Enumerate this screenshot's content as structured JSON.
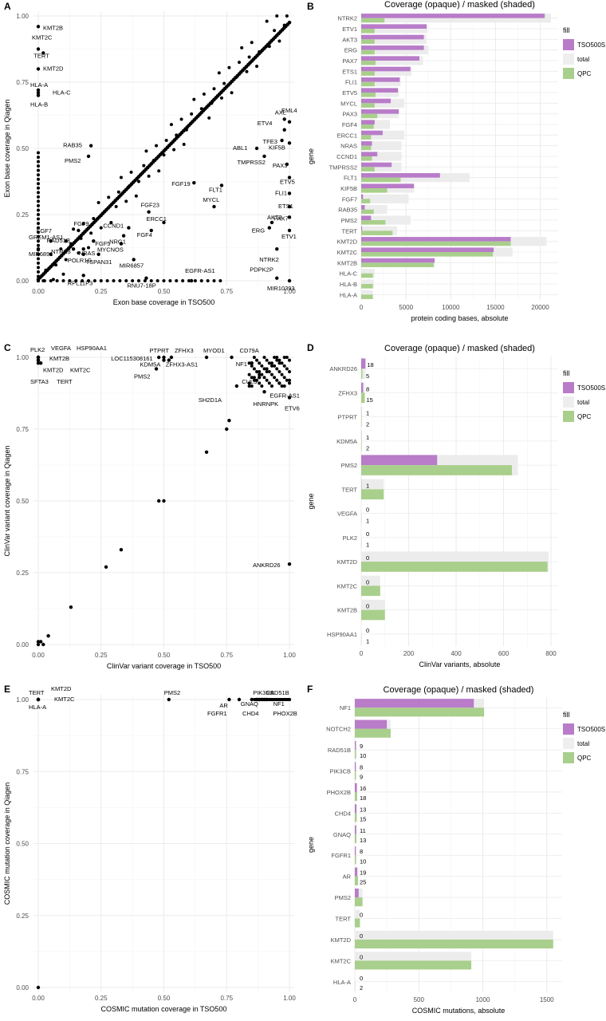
{
  "legend_labels": {
    "title": "fill",
    "items": [
      [
        "TSO500S",
        "#b87cc9"
      ],
      [
        "total",
        "#eeeeee"
      ],
      [
        "QPC",
        "#a9cf8c"
      ]
    ]
  },
  "colors": {
    "tso500": "#b87cc9",
    "total": "#ececec",
    "qpc": "#a9cf8c",
    "grid": "#ebebeb",
    "point": "#000000"
  },
  "chart_data": [
    {
      "type": "scatter",
      "panel": "A",
      "xlabel": "Exon base coverage in TSO500",
      "ylabel": "Exon base coverage in Qiagen",
      "xlim": [
        0,
        1
      ],
      "ylim": [
        0,
        1
      ],
      "ticks": [
        "0.00",
        "0.25",
        "0.50",
        "0.75",
        "1.00"
      ],
      "labeled_points": [
        {
          "label": "KMT2B",
          "x": 0.0,
          "y": 0.96
        },
        {
          "label": "KMT2C",
          "x": 0.0,
          "y": 0.875
        },
        {
          "label": "TERT",
          "x": 0.02,
          "y": 0.86
        },
        {
          "label": "KMT2D",
          "x": 0.0,
          "y": 0.8
        },
        {
          "label": "HLA-A",
          "x": 0.0,
          "y": 0.72
        },
        {
          "label": "HLA-C",
          "x": 0.0,
          "y": 0.71
        },
        {
          "label": "HLA-B",
          "x": 0.0,
          "y": 0.7
        },
        {
          "label": "RAB35",
          "x": 0.21,
          "y": 0.51
        },
        {
          "label": "PMS2",
          "x": 0.2,
          "y": 0.47
        },
        {
          "label": "GREM1-AS1",
          "x": 0.0,
          "y": 0.12
        },
        {
          "label": "FGF7",
          "x": 0.05,
          "y": 0.15
        },
        {
          "label": "MIR6891",
          "x": 0.0,
          "y": 0.1
        },
        {
          "label": "FGF9",
          "x": 0.16,
          "y": 0.19
        },
        {
          "label": "RAD51B",
          "x": 0.11,
          "y": 0.15
        },
        {
          "label": "NTRK3",
          "x": 0.14,
          "y": 0.12
        },
        {
          "label": "NRAS",
          "x": 0.18,
          "y": 0.12
        },
        {
          "label": "FGF5",
          "x": 0.22,
          "y": 0.15
        },
        {
          "label": "POLR1G",
          "x": 0.18,
          "y": 0.1
        },
        {
          "label": "TSPAN31",
          "x": 0.24,
          "y": 0.1
        },
        {
          "label": "RPL11P3",
          "x": 0.18,
          "y": 0.02
        },
        {
          "label": "CCND1",
          "x": 0.36,
          "y": 0.2
        },
        {
          "label": "NRG1",
          "x": 0.34,
          "y": 0.17
        },
        {
          "label": "MYCNOS",
          "x": 0.33,
          "y": 0.14
        },
        {
          "label": "FGF23",
          "x": 0.44,
          "y": 0.26
        },
        {
          "label": "ERCC1",
          "x": 0.5,
          "y": 0.22
        },
        {
          "label": "FGF4",
          "x": 0.45,
          "y": 0.19
        },
        {
          "label": "MIR6857",
          "x": 0.38,
          "y": 0.08
        },
        {
          "label": "RNU7-18P",
          "x": 0.43,
          "y": 0.01
        },
        {
          "label": "EGFR-AS1",
          "x": 0.61,
          "y": 0.0
        },
        {
          "label": "FGF19",
          "x": 0.62,
          "y": 0.37
        },
        {
          "label": "FLT1",
          "x": 0.73,
          "y": 0.36
        },
        {
          "label": "MYCL",
          "x": 0.7,
          "y": 0.28
        },
        {
          "label": "ABL1",
          "x": 0.87,
          "y": 0.5
        },
        {
          "label": "TMPRSS2",
          "x": 0.9,
          "y": 0.47
        },
        {
          "label": "AXL",
          "x": 0.98,
          "y": 0.61
        },
        {
          "label": "EML4",
          "x": 1.0,
          "y": 0.6
        },
        {
          "label": "ETV4",
          "x": 0.98,
          "y": 0.57
        },
        {
          "label": "TFE3",
          "x": 0.97,
          "y": 0.53
        },
        {
          "label": "KIF5B",
          "x": 1.0,
          "y": 0.52
        },
        {
          "label": "PAX3",
          "x": 0.99,
          "y": 0.44
        },
        {
          "label": "ETV5",
          "x": 1.0,
          "y": 0.39
        },
        {
          "label": "FLI1",
          "x": 1.0,
          "y": 0.33
        },
        {
          "label": "ETS1",
          "x": 1.0,
          "y": 0.28
        },
        {
          "label": "PAX7",
          "x": 1.0,
          "y": 0.24
        },
        {
          "label": "AKT3",
          "x": 0.93,
          "y": 0.22
        },
        {
          "label": "ERG",
          "x": 0.92,
          "y": 0.2
        },
        {
          "label": "ETV1",
          "x": 1.0,
          "y": 0.19
        },
        {
          "label": "NTRK2",
          "x": 0.95,
          "y": 0.12
        },
        {
          "label": "PDPK2P",
          "x": 0.95,
          "y": 0.01
        },
        {
          "label": "MIR10393",
          "x": 1.0,
          "y": 0.0
        }
      ]
    },
    {
      "type": "bar",
      "panel": "B",
      "title": "Coverage (opaque) / masked (shaded)",
      "xlabel": "protein coding bases, absolute",
      "ylabel": "gene",
      "xlim": [
        0,
        22000
      ],
      "xticks": [
        0,
        5000,
        10000,
        15000,
        20000
      ],
      "categories": [
        "NTRK2",
        "ETV1",
        "AKT3",
        "ERG",
        "PAX7",
        "ETS1",
        "FLI1",
        "ETV5",
        "MYCL",
        "PAX3",
        "FGF4",
        "ERCC1",
        "NRAS",
        "CCND1",
        "TMPRSS2",
        "FLT1",
        "KIF5B",
        "FGF7",
        "RAB35",
        "PMS2",
        "TERT",
        "KMT2D",
        "KMT2C",
        "KMT2B",
        "HLA-C",
        "HLA-B",
        "HLA-A"
      ],
      "series": [
        {
          "name": "TSO500S",
          "values": [
            20500,
            7300,
            7000,
            7000,
            6500,
            5500,
            4300,
            4100,
            3300,
            4200,
            1500,
            2400,
            1200,
            1800,
            3400,
            8800,
            5900,
            200,
            400,
            1100,
            100,
            16700,
            14800,
            8200,
            0,
            0,
            0
          ]
        },
        {
          "name": "total",
          "values": [
            21200,
            7400,
            7300,
            7500,
            6900,
            5600,
            4400,
            4200,
            4800,
            4200,
            3200,
            4800,
            4500,
            4500,
            4500,
            12100,
            5900,
            5300,
            2900,
            5500,
            4000,
            20700,
            16900,
            8200,
            1500,
            1400,
            1300
          ]
        },
        {
          "name": "QPC",
          "values": [
            2600,
            1500,
            1500,
            1500,
            1600,
            1500,
            1500,
            1600,
            1500,
            1800,
            1400,
            1100,
            1100,
            1200,
            1500,
            4400,
            2900,
            1000,
            1400,
            2700,
            3500,
            16700,
            14700,
            8100,
            1300,
            1300,
            1300
          ]
        }
      ]
    },
    {
      "type": "scatter",
      "panel": "C",
      "xlabel": "ClinVar variant coverage in TSO500",
      "ylabel": "ClinVar variant coverage in Qiagen",
      "xlim": [
        0,
        1
      ],
      "ylim": [
        0,
        1
      ],
      "ticks": [
        "0.00",
        "0.25",
        "0.50",
        "0.75",
        "1.00"
      ],
      "labeled_points": [
        {
          "label": "PLK2",
          "x": 0.0,
          "y": 1.0
        },
        {
          "label": "VEGFA",
          "x": 0.0,
          "y": 1.0
        },
        {
          "label": "HSP90AA1",
          "x": 0.0,
          "y": 1.0
        },
        {
          "label": "KMT2B",
          "x": 0.0,
          "y": 1.0
        },
        {
          "label": "KMT2D",
          "x": 0.0,
          "y": 0.99
        },
        {
          "label": "KMT2C",
          "x": 0.0,
          "y": 0.99
        },
        {
          "label": "SFTA3",
          "x": 0.0,
          "y": 0.98
        },
        {
          "label": "TERT",
          "x": 0.01,
          "y": 0.98
        },
        {
          "label": "LOC115308161",
          "x": 0.48,
          "y": 1.0
        },
        {
          "label": "PTPRT",
          "x": 0.5,
          "y": 1.0
        },
        {
          "label": "ZFHX3",
          "x": 0.53,
          "y": 1.0
        },
        {
          "label": "KDM5A",
          "x": 0.5,
          "y": 0.99
        },
        {
          "label": "ZFHX3-AS1",
          "x": 0.52,
          "y": 0.99
        },
        {
          "label": "PMS2",
          "x": 0.47,
          "y": 0.96
        },
        {
          "label": "MYOD1",
          "x": 0.67,
          "y": 1.0
        },
        {
          "label": "CD79A",
          "x": 0.77,
          "y": 1.0
        },
        {
          "label": "NF1",
          "x": 0.85,
          "y": 0.98
        },
        {
          "label": "CUL3",
          "x": 0.88,
          "y": 0.93
        },
        {
          "label": "EGFR-AS1",
          "x": 0.96,
          "y": 0.91
        },
        {
          "label": "HNRNPK",
          "x": 0.9,
          "y": 0.88
        },
        {
          "label": "SH2D1A",
          "x": 0.79,
          "y": 0.9
        },
        {
          "label": "ETV6",
          "x": 1.0,
          "y": 0.86
        },
        {
          "label": "ANKRD26",
          "x": 1.0,
          "y": 0.28
        }
      ],
      "points": [
        {
          "x": 0.0,
          "y": 0.0
        },
        {
          "x": 0.01,
          "y": 0.01
        },
        {
          "x": 0.0,
          "y": 0.01
        },
        {
          "x": 0.02,
          "y": 0.0
        },
        {
          "x": 0.04,
          "y": 0.03
        },
        {
          "x": 0.13,
          "y": 0.13
        },
        {
          "x": 0.27,
          "y": 0.27
        },
        {
          "x": 0.33,
          "y": 0.33
        },
        {
          "x": 0.48,
          "y": 0.5
        },
        {
          "x": 0.5,
          "y": 0.5
        },
        {
          "x": 0.67,
          "y": 0.67
        },
        {
          "x": 0.75,
          "y": 0.75
        },
        {
          "x": 0.76,
          "y": 0.78
        }
      ]
    },
    {
      "type": "bar",
      "panel": "D",
      "title": "Coverage (opaque) / masked (shaded)",
      "xlabel": "ClinVar variants, absolute",
      "ylabel": "gene",
      "xlim": [
        0,
        830
      ],
      "xticks": [
        0,
        200,
        400,
        600,
        800
      ],
      "categories": [
        "ANKRD26",
        "ZFHX3",
        "PTPRT",
        "KDM5A",
        "PMS2",
        "TERT",
        "VEGFA",
        "PLK2",
        "KMT2D",
        "KMT2C",
        "KMT2B",
        "HSP90AA1"
      ],
      "value_labels": {
        "TSO500S": [
          "18",
          "8",
          "1",
          "1",
          "",
          "1",
          "0",
          "0",
          "0",
          "0",
          "0",
          "0"
        ],
        "QPC": [
          "5",
          "15",
          "2",
          "2",
          "",
          "",
          "1",
          "1",
          "",
          "",
          "",
          "1"
        ]
      },
      "series": [
        {
          "name": "TSO500S",
          "values": [
            18,
            8,
            1,
            1,
            320,
            1,
            0,
            0,
            0,
            0,
            0,
            0
          ]
        },
        {
          "name": "total",
          "values": [
            18,
            15,
            2,
            2,
            660,
            95,
            1,
            1,
            790,
            80,
            100,
            1
          ]
        },
        {
          "name": "QPC",
          "values": [
            5,
            15,
            2,
            2,
            635,
            95,
            1,
            1,
            785,
            80,
            100,
            1
          ]
        }
      ]
    },
    {
      "type": "scatter",
      "panel": "E",
      "xlabel": "COSMIC mutation coverage in TSO500",
      "ylabel": "COSMIC mutation coverage in Qiagen",
      "xlim": [
        0,
        1
      ],
      "ylim": [
        0,
        1
      ],
      "ticks": [
        "0.00",
        "0.25",
        "0.50",
        "0.75",
        "1.00"
      ],
      "labeled_points": [
        {
          "label": "TERT",
          "x": 0.0,
          "y": 1.0
        },
        {
          "label": "KMT2D",
          "x": 0.0,
          "y": 1.0
        },
        {
          "label": "HLA-A",
          "x": 0.0,
          "y": 1.0
        },
        {
          "label": "KMT2C",
          "x": 0.0,
          "y": 1.0
        },
        {
          "label": "PMS2",
          "x": 0.52,
          "y": 1.0
        },
        {
          "label": "AR",
          "x": 0.76,
          "y": 1.0
        },
        {
          "label": "PIK3CB",
          "x": 0.88,
          "y": 1.0
        },
        {
          "label": "RAD51B",
          "x": 0.9,
          "y": 1.0
        },
        {
          "label": "GNAQ",
          "x": 0.85,
          "y": 1.0
        },
        {
          "label": "NF1",
          "x": 0.91,
          "y": 1.0
        },
        {
          "label": "FGFR1",
          "x": 0.8,
          "y": 1.0
        },
        {
          "label": "CHD4",
          "x": 0.87,
          "y": 1.0
        },
        {
          "label": "PHOX2B",
          "x": 0.89,
          "y": 1.0
        }
      ],
      "points": [
        {
          "x": 0.0,
          "y": 0.0
        }
      ]
    },
    {
      "type": "bar",
      "panel": "F",
      "title": "Coverage (opaque) / masked (shaded)",
      "xlabel": "COSMIC mutations, absolute",
      "ylabel": "gene",
      "xlim": [
        0,
        1620
      ],
      "xticks": [
        0,
        500,
        1000,
        1500
      ],
      "categories": [
        "NF1",
        "NOTCH2",
        "RAD51B",
        "PIK3CB",
        "PHOX2B",
        "CHD4",
        "GNAQ",
        "FGFR1",
        "AR",
        "PMS2",
        "TERT",
        "KMT2D",
        "KMT2C",
        "HLA-A"
      ],
      "value_labels": {
        "TSO500S": [
          "",
          "",
          "9",
          "8",
          "16",
          "13",
          "11",
          "8",
          "19",
          "",
          "0",
          "0",
          "0",
          "0"
        ],
        "QPC": [
          "",
          "",
          "10",
          "9",
          "18",
          "15",
          "13",
          "10",
          "25",
          "",
          "",
          "",
          "",
          "2"
        ]
      },
      "series": [
        {
          "name": "TSO500S",
          "values": [
            930,
            250,
            9,
            8,
            16,
            13,
            11,
            8,
            19,
            30,
            0,
            0,
            0,
            0
          ]
        },
        {
          "name": "total",
          "values": [
            1010,
            280,
            10,
            9,
            18,
            15,
            13,
            10,
            25,
            60,
            40,
            1550,
            910,
            2
          ]
        },
        {
          "name": "QPC",
          "values": [
            1010,
            280,
            10,
            9,
            18,
            15,
            13,
            10,
            25,
            60,
            40,
            1550,
            910,
            2
          ]
        }
      ]
    }
  ]
}
